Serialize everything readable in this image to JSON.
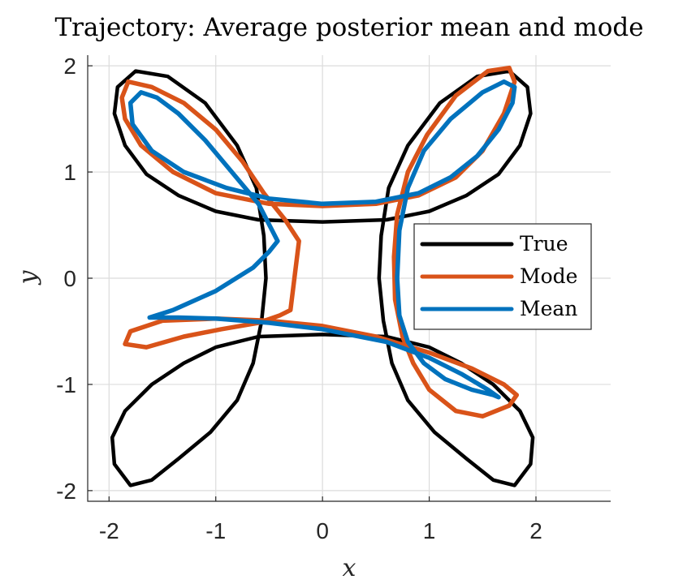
{
  "chart_data": {
    "type": "line",
    "title": "Trajectory: Average posterior mean and mode",
    "xlabel": "x",
    "ylabel": "y",
    "xlim": [
      -2.2,
      2.7
    ],
    "ylim": [
      -2.1,
      2.1
    ],
    "xticks": [
      -2,
      -1,
      0,
      1,
      2
    ],
    "yticks": [
      -2,
      -1,
      0,
      1,
      2
    ],
    "xtick_labels": [
      "-2",
      "-1",
      "0",
      "1",
      "2"
    ],
    "ytick_labels": [
      "-2",
      "-1",
      "0",
      "1",
      "2"
    ],
    "grid": true,
    "legend_position": "right-middle",
    "series": [
      {
        "name": "True",
        "color": "#000000",
        "x": [
          0.0,
          0.6,
          1.0,
          1.35,
          1.65,
          1.85,
          1.95,
          1.92,
          1.75,
          1.45,
          1.1,
          0.8,
          0.62,
          0.55,
          0.53,
          0.57,
          0.65,
          0.8,
          1.05,
          1.35,
          1.6,
          1.8,
          1.95,
          1.97,
          1.85,
          1.6,
          1.3,
          1.0,
          0.6,
          0.0,
          -0.6,
          -1.0,
          -1.3,
          -1.6,
          -1.85,
          -1.97,
          -1.95,
          -1.8,
          -1.6,
          -1.35,
          -1.05,
          -0.8,
          -0.65,
          -0.57,
          -0.53,
          -0.55,
          -0.62,
          -0.8,
          -1.1,
          -1.45,
          -1.75,
          -1.92,
          -1.95,
          -1.85,
          -1.65,
          -1.35,
          -1.0,
          -0.6,
          0.0
        ],
        "y": [
          0.53,
          0.55,
          0.63,
          0.78,
          0.98,
          1.25,
          1.55,
          1.8,
          1.95,
          1.9,
          1.65,
          1.25,
          0.85,
          0.4,
          0.0,
          -0.4,
          -0.8,
          -1.15,
          -1.45,
          -1.7,
          -1.9,
          -1.95,
          -1.75,
          -1.5,
          -1.25,
          -1.0,
          -0.8,
          -0.65,
          -0.55,
          -0.53,
          -0.55,
          -0.65,
          -0.8,
          -1.0,
          -1.25,
          -1.5,
          -1.75,
          -1.95,
          -1.9,
          -1.7,
          -1.45,
          -1.15,
          -0.8,
          -0.4,
          0.0,
          0.4,
          0.85,
          1.25,
          1.65,
          1.9,
          1.95,
          1.8,
          1.55,
          1.25,
          0.98,
          0.78,
          0.63,
          0.55,
          0.53
        ]
      },
      {
        "name": "Mode",
        "color": "#d95319",
        "x": [
          0.0,
          0.5,
          0.9,
          1.25,
          1.5,
          1.7,
          1.8,
          1.75,
          1.55,
          1.25,
          0.98,
          0.8,
          0.7,
          0.67,
          0.68,
          0.75,
          0.85,
          1.0,
          1.25,
          1.5,
          1.75,
          1.82,
          1.7,
          1.4,
          1.0,
          0.5,
          0.0,
          -0.5,
          -1.0,
          -1.5,
          -1.8,
          -1.85,
          -1.65,
          -1.3,
          -0.95,
          -0.6,
          -0.4,
          -0.3,
          -0.22,
          -0.35,
          -0.55,
          -0.75,
          -1.0,
          -1.3,
          -1.6,
          -1.82,
          -1.88,
          -1.85,
          -1.7,
          -1.4,
          -1.0,
          -0.5,
          0.0
        ],
        "y": [
          0.68,
          0.7,
          0.78,
          0.95,
          1.2,
          1.55,
          1.85,
          1.98,
          1.95,
          1.72,
          1.35,
          1.0,
          0.6,
          0.2,
          -0.2,
          -0.55,
          -0.8,
          -1.05,
          -1.25,
          -1.3,
          -1.2,
          -1.1,
          -1.0,
          -0.85,
          -0.7,
          -0.55,
          -0.45,
          -0.4,
          -0.38,
          -0.4,
          -0.5,
          -0.62,
          -0.65,
          -0.55,
          -0.48,
          -0.42,
          -0.35,
          -0.3,
          0.35,
          0.55,
          0.8,
          1.1,
          1.4,
          1.65,
          1.8,
          1.85,
          1.7,
          1.5,
          1.25,
          1.0,
          0.8,
          0.7,
          0.68
        ]
      },
      {
        "name": "Mean",
        "color": "#0072bd",
        "x": [
          0.0,
          0.5,
          0.9,
          1.2,
          1.45,
          1.65,
          1.78,
          1.8,
          1.7,
          1.5,
          1.2,
          0.95,
          0.8,
          0.72,
          0.7,
          0.72,
          0.8,
          0.95,
          1.15,
          1.4,
          1.6,
          1.65,
          1.55,
          1.3,
          1.0,
          0.6,
          0.0,
          -0.5,
          -1.0,
          -1.35,
          -1.62,
          -1.4,
          -1.0,
          -0.65,
          -0.5,
          -0.42,
          -0.6,
          -0.85,
          -1.1,
          -1.35,
          -1.55,
          -1.7,
          -1.8,
          -1.78,
          -1.6,
          -1.3,
          -0.9,
          -0.5,
          0.0
        ],
        "y": [
          0.7,
          0.72,
          0.8,
          0.95,
          1.15,
          1.4,
          1.65,
          1.8,
          1.85,
          1.75,
          1.5,
          1.2,
          0.85,
          0.45,
          0.0,
          -0.35,
          -0.6,
          -0.8,
          -0.95,
          -1.05,
          -1.1,
          -1.12,
          -1.05,
          -0.9,
          -0.75,
          -0.6,
          -0.48,
          -0.42,
          -0.38,
          -0.37,
          -0.37,
          -0.3,
          -0.12,
          0.1,
          0.25,
          0.35,
          0.7,
          1.0,
          1.3,
          1.55,
          1.7,
          1.75,
          1.65,
          1.45,
          1.2,
          1.0,
          0.85,
          0.75,
          0.7
        ]
      }
    ]
  }
}
